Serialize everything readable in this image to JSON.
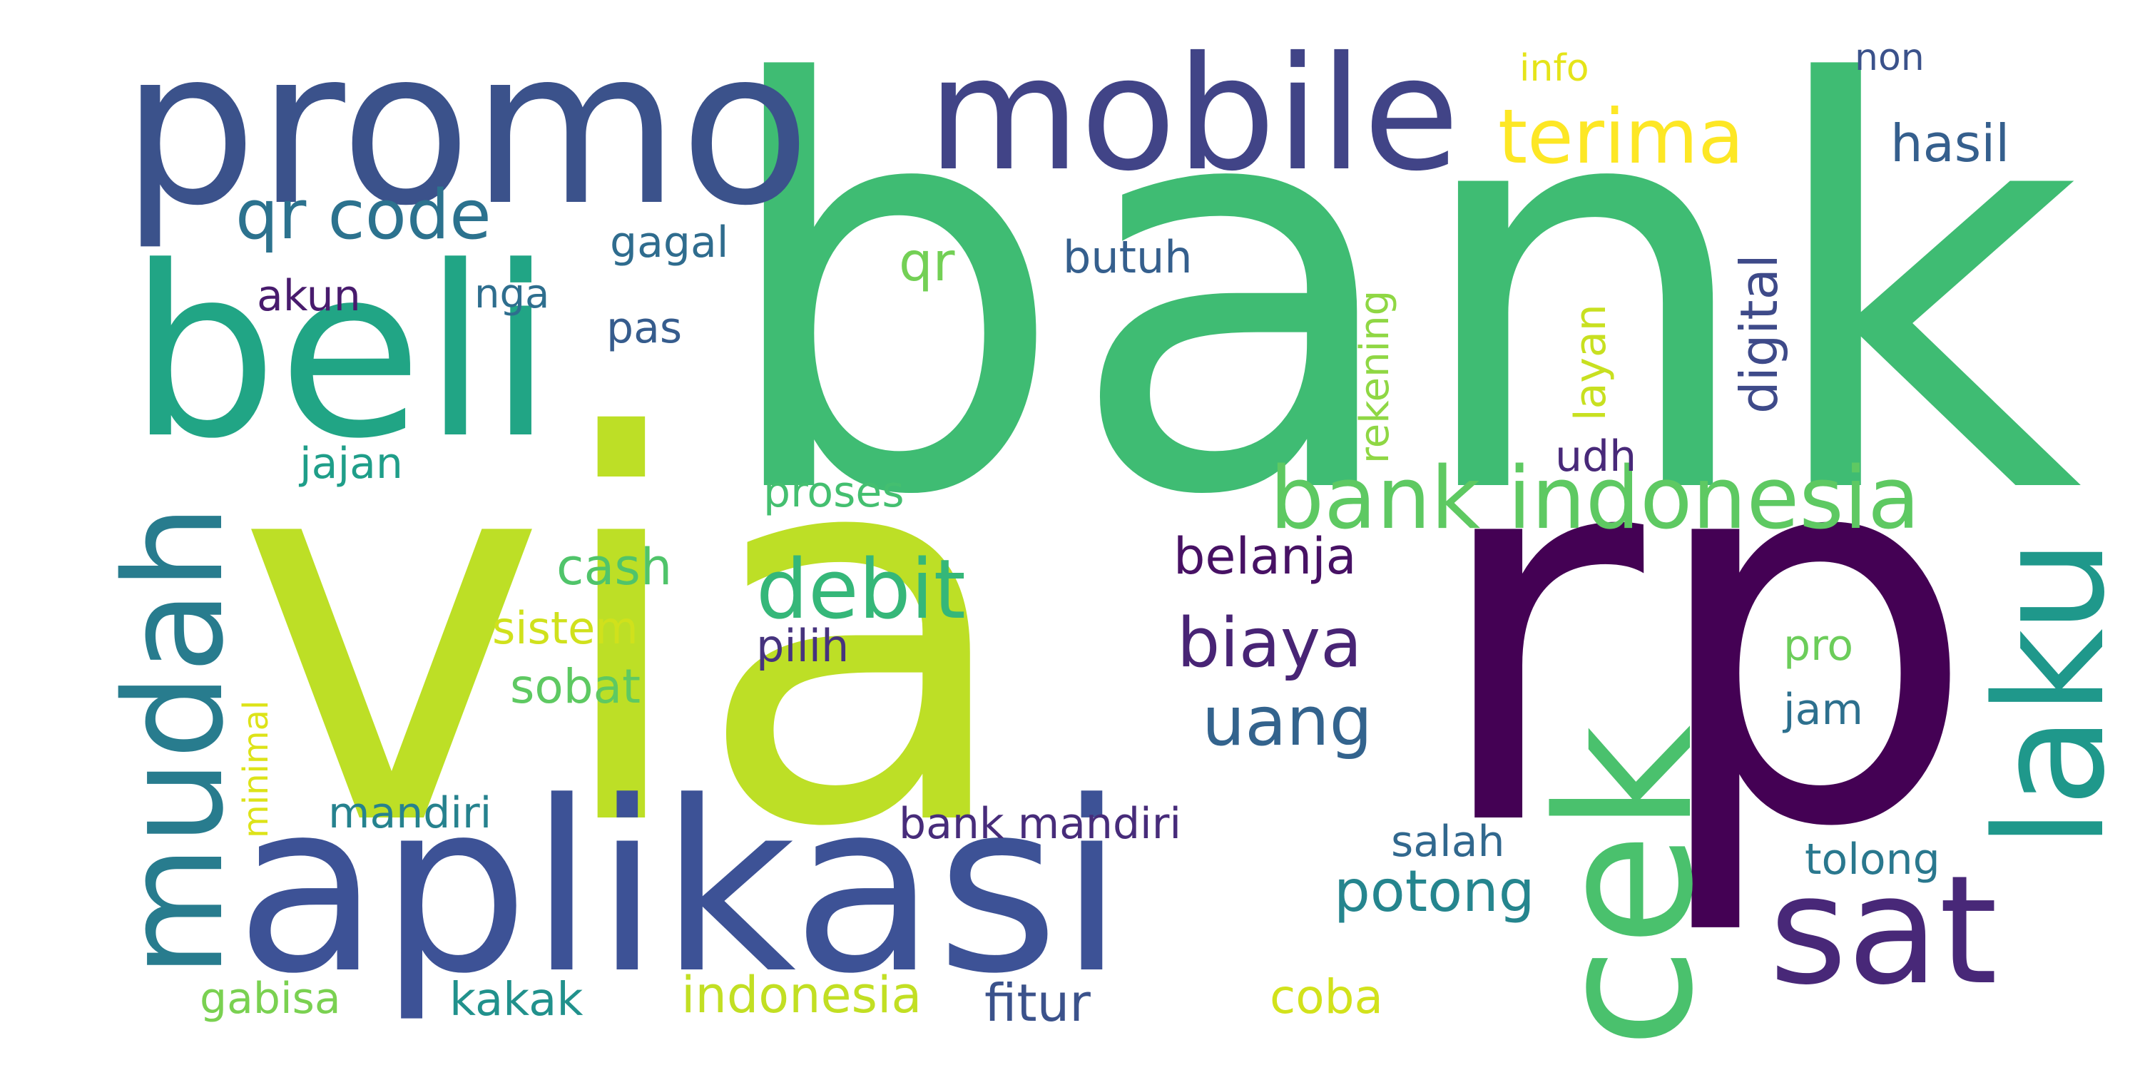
{
  "words": [
    {
      "text": "bank",
      "color": "#3fbc73"
    },
    {
      "text": "via",
      "color": "#bddf26"
    },
    {
      "text": "rp",
      "color": "#440154"
    },
    {
      "text": "promo",
      "color": "#3b528b"
    },
    {
      "text": "aplikasi",
      "color": "#3d5296"
    },
    {
      "text": "beli",
      "color": "#21a585"
    },
    {
      "text": "mobile",
      "color": "#414487"
    },
    {
      "text": "mudah",
      "color": "#287c8e"
    },
    {
      "text": "cek",
      "color": "#4ac16d"
    },
    {
      "text": "laku",
      "color": "#1f988b"
    },
    {
      "text": "sat",
      "color": "#482878"
    },
    {
      "text": "bank indonesia",
      "color": "#5ec962"
    },
    {
      "text": "terima",
      "color": "#fde725"
    },
    {
      "text": "qr code",
      "color": "#2c728e"
    },
    {
      "text": "debit",
      "color": "#35b779"
    },
    {
      "text": "biaya",
      "color": "#482475"
    },
    {
      "text": "uang",
      "color": "#33638d"
    },
    {
      "text": "potong",
      "color": "#25858e"
    },
    {
      "text": "belanja",
      "color": "#471164"
    },
    {
      "text": "hasil",
      "color": "#355f8d"
    },
    {
      "text": "digital",
      "color": "#3e4a89"
    },
    {
      "text": "cash",
      "color": "#50c46a"
    },
    {
      "text": "sistem",
      "color": "#d0e11c"
    },
    {
      "text": "sobat",
      "color": "#5ec962"
    },
    {
      "text": "pilih",
      "color": "#46337e"
    },
    {
      "text": "proses",
      "color": "#44bf70"
    },
    {
      "text": "bank mandiri",
      "color": "#472c7a"
    },
    {
      "text": "mandiri",
      "color": "#26828e"
    },
    {
      "text": "indonesia",
      "color": "#c2df23"
    },
    {
      "text": "fitur",
      "color": "#3b528b"
    },
    {
      "text": "kakak",
      "color": "#21918c"
    },
    {
      "text": "gabisa",
      "color": "#7ad151"
    },
    {
      "text": "coba",
      "color": "#d2e21b"
    },
    {
      "text": "salah",
      "color": "#31688e"
    },
    {
      "text": "tolong",
      "color": "#2a788e"
    },
    {
      "text": "jam",
      "color": "#2d708e"
    },
    {
      "text": "pro",
      "color": "#6ccd5a"
    },
    {
      "text": "udh",
      "color": "#482979"
    },
    {
      "text": "layan",
      "color": "#c8e020"
    },
    {
      "text": "rekening",
      "color": "#8fd744"
    },
    {
      "text": "jajan",
      "color": "#1f9e89"
    },
    {
      "text": "akun",
      "color": "#481b6d"
    },
    {
      "text": "nga",
      "color": "#2e6e8e"
    },
    {
      "text": "pas",
      "color": "#365c8d"
    },
    {
      "text": "gagal",
      "color": "#2f6c8e"
    },
    {
      "text": "qr",
      "color": "#73d055"
    },
    {
      "text": "butuh",
      "color": "#355f8d"
    },
    {
      "text": "info",
      "color": "#e5e419"
    },
    {
      "text": "non",
      "color": "#3b528b"
    },
    {
      "text": "minimal",
      "color": "#dde318"
    }
  ]
}
